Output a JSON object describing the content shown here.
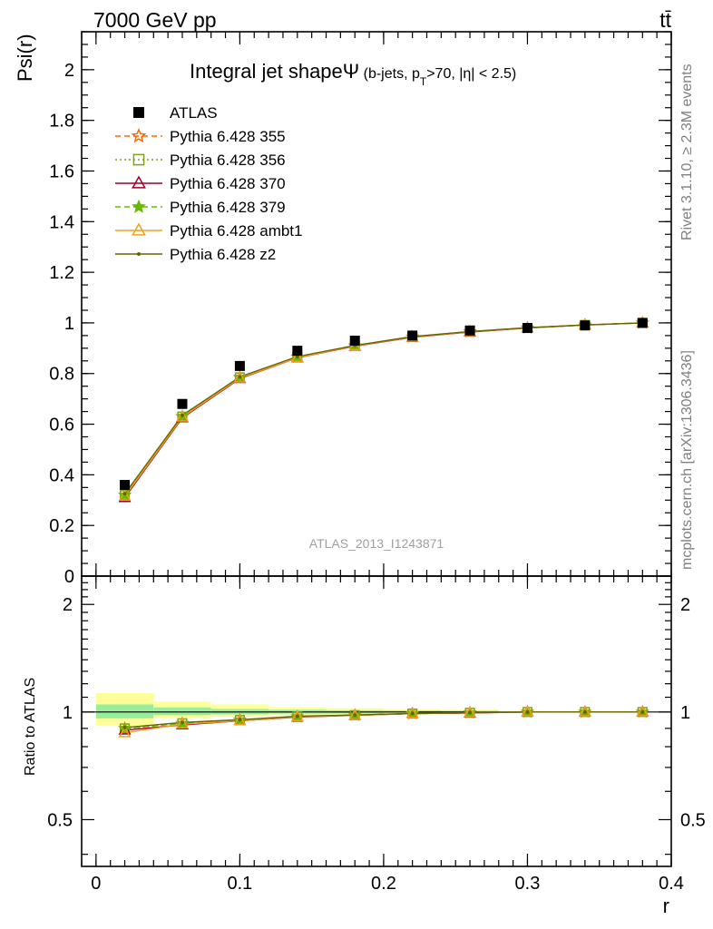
{
  "header": {
    "energy_label": "7000 GeV pp",
    "process_label": "tt̄"
  },
  "side_labels": {
    "rivet": "Rivet 3.1.10, ≥ 2.3M events",
    "mcplots": "mcplots.cern.ch [arXiv:1306.3436]"
  },
  "chart_data": [
    {
      "id": "main",
      "type": "line",
      "title_main": "Integral jet shape",
      "title_symbol": "Ψ",
      "title_detail_pre": " (b-jets, p",
      "title_detail_sub": "T",
      "title_detail_post": ">70, |η| < 2.5)",
      "watermark": "ATLAS_2013_I1243871",
      "xlabel": "r",
      "ylabel": "Psi(r)",
      "xlim": [
        -0.01,
        0.4
      ],
      "ylim": [
        0,
        2.15
      ],
      "x_ticks": [
        0,
        0.1,
        0.2,
        0.3,
        0.4
      ],
      "x_tick_labels": [
        "0",
        "0.1",
        "0.2",
        "0.3",
        "0.4"
      ],
      "y_ticks": [
        0,
        0.2,
        0.4,
        0.6,
        0.8,
        1,
        1.2,
        1.4,
        1.6,
        1.8,
        2
      ],
      "y_tick_labels": [
        "0",
        "0.2",
        "0.4",
        "0.6",
        "0.8",
        "1",
        "1.2",
        "1.4",
        "1.6",
        "1.8",
        "2"
      ],
      "legend_position": "top-left",
      "x": [
        0.02,
        0.06,
        0.1,
        0.14,
        0.18,
        0.22,
        0.26,
        0.3,
        0.34,
        0.38
      ],
      "data": {
        "name": "ATLAS",
        "values": [
          0.36,
          0.68,
          0.83,
          0.89,
          0.93,
          0.95,
          0.97,
          0.98,
          0.99,
          1.0
        ],
        "color": "#000000"
      },
      "series": [
        {
          "name": "Pythia 6.428 355",
          "values": [
            0.32,
            0.63,
            0.785,
            0.865,
            0.91,
            0.945,
            0.965,
            0.98,
            0.992,
            1.0
          ],
          "color": "#ff6600",
          "dash": "6,4",
          "marker": "star-open"
        },
        {
          "name": "Pythia 6.428 356",
          "values": [
            0.32,
            0.63,
            0.785,
            0.865,
            0.91,
            0.945,
            0.965,
            0.98,
            0.992,
            1.0
          ],
          "color": "#7f9f1f",
          "dash": "2,3",
          "marker": "square-open"
        },
        {
          "name": "Pythia 6.428 370",
          "values": [
            0.31,
            0.625,
            0.78,
            0.862,
            0.908,
            0.943,
            0.964,
            0.98,
            0.992,
            1.0
          ],
          "color": "#a0002a",
          "dash": "",
          "marker": "triangle-open"
        },
        {
          "name": "Pythia 6.428 379",
          "values": [
            0.32,
            0.632,
            0.785,
            0.866,
            0.91,
            0.945,
            0.966,
            0.981,
            0.992,
            1.0
          ],
          "color": "#66bb00",
          "dash": "6,4",
          "marker": "star-filled"
        },
        {
          "name": "Pythia 6.428 ambt1",
          "values": [
            0.315,
            0.628,
            0.782,
            0.863,
            0.909,
            0.944,
            0.965,
            0.98,
            0.992,
            1.0
          ],
          "color": "#f0a020",
          "dash": "",
          "marker": "triangle-open"
        },
        {
          "name": "Pythia 6.428 z2",
          "values": [
            0.325,
            0.635,
            0.787,
            0.867,
            0.911,
            0.946,
            0.966,
            0.981,
            0.992,
            1.0
          ],
          "color": "#666600",
          "dash": "",
          "marker": "dot"
        }
      ]
    },
    {
      "id": "ratio",
      "type": "line",
      "ylabel": "Ratio to ATLAS",
      "xlabel": "r",
      "xlim": [
        -0.01,
        0.4
      ],
      "ylim": [
        0.37,
        2.4
      ],
      "log_y": true,
      "y_ticks": [
        0.5,
        1,
        2
      ],
      "y_tick_labels": [
        "0.5",
        "1",
        "2"
      ],
      "x_ticks": [
        0,
        0.1,
        0.2,
        0.3,
        0.4
      ],
      "x_tick_labels": [
        "0",
        "0.1",
        "0.2",
        "0.3",
        "0.4"
      ],
      "x": [
        0.02,
        0.06,
        0.1,
        0.14,
        0.18,
        0.22,
        0.26,
        0.3,
        0.34,
        0.38
      ],
      "bands": [
        {
          "x_from": 0.0,
          "x_to": 0.04,
          "yellow": [
            0.92,
            1.13
          ],
          "green": [
            0.96,
            1.05
          ]
        },
        {
          "x_from": 0.04,
          "x_to": 0.08,
          "yellow": [
            0.96,
            1.07
          ],
          "green": [
            0.98,
            1.03
          ]
        },
        {
          "x_from": 0.08,
          "x_to": 0.12,
          "yellow": [
            0.97,
            1.05
          ],
          "green": [
            0.985,
            1.02
          ]
        },
        {
          "x_from": 0.12,
          "x_to": 0.16,
          "yellow": [
            0.98,
            1.03
          ],
          "green": [
            0.99,
            1.015
          ]
        },
        {
          "x_from": 0.16,
          "x_to": 0.2,
          "yellow": [
            0.985,
            1.025
          ],
          "green": [
            0.99,
            1.012
          ]
        },
        {
          "x_from": 0.2,
          "x_to": 0.24,
          "yellow": [
            0.99,
            1.02
          ],
          "green": [
            0.995,
            1.01
          ]
        },
        {
          "x_from": 0.24,
          "x_to": 0.28,
          "yellow": [
            0.992,
            1.015
          ],
          "green": [
            0.996,
            1.008
          ]
        }
      ],
      "series": [
        {
          "name": "Pythia 6.428 355",
          "values": [
            0.9,
            0.93,
            0.95,
            0.97,
            0.98,
            0.99,
            0.995,
            1.0,
            1.0,
            1.0
          ]
        },
        {
          "name": "Pythia 6.428 356",
          "values": [
            0.9,
            0.93,
            0.95,
            0.97,
            0.98,
            0.99,
            0.995,
            1.0,
            1.0,
            1.0
          ]
        },
        {
          "name": "Pythia 6.428 370",
          "values": [
            0.89,
            0.92,
            0.945,
            0.968,
            0.978,
            0.99,
            0.994,
            1.0,
            1.0,
            1.0
          ]
        },
        {
          "name": "Pythia 6.428 379",
          "values": [
            0.9,
            0.93,
            0.95,
            0.972,
            0.98,
            0.99,
            0.996,
            1.0,
            1.0,
            1.0
          ]
        },
        {
          "name": "Pythia 6.428 ambt1",
          "values": [
            0.875,
            0.925,
            0.945,
            0.97,
            0.978,
            0.99,
            0.995,
            1.0,
            1.0,
            1.0
          ]
        },
        {
          "name": "Pythia 6.428 z2",
          "values": [
            0.905,
            0.935,
            0.952,
            0.973,
            0.981,
            0.991,
            0.996,
            1.0,
            1.0,
            1.0
          ]
        }
      ]
    }
  ]
}
